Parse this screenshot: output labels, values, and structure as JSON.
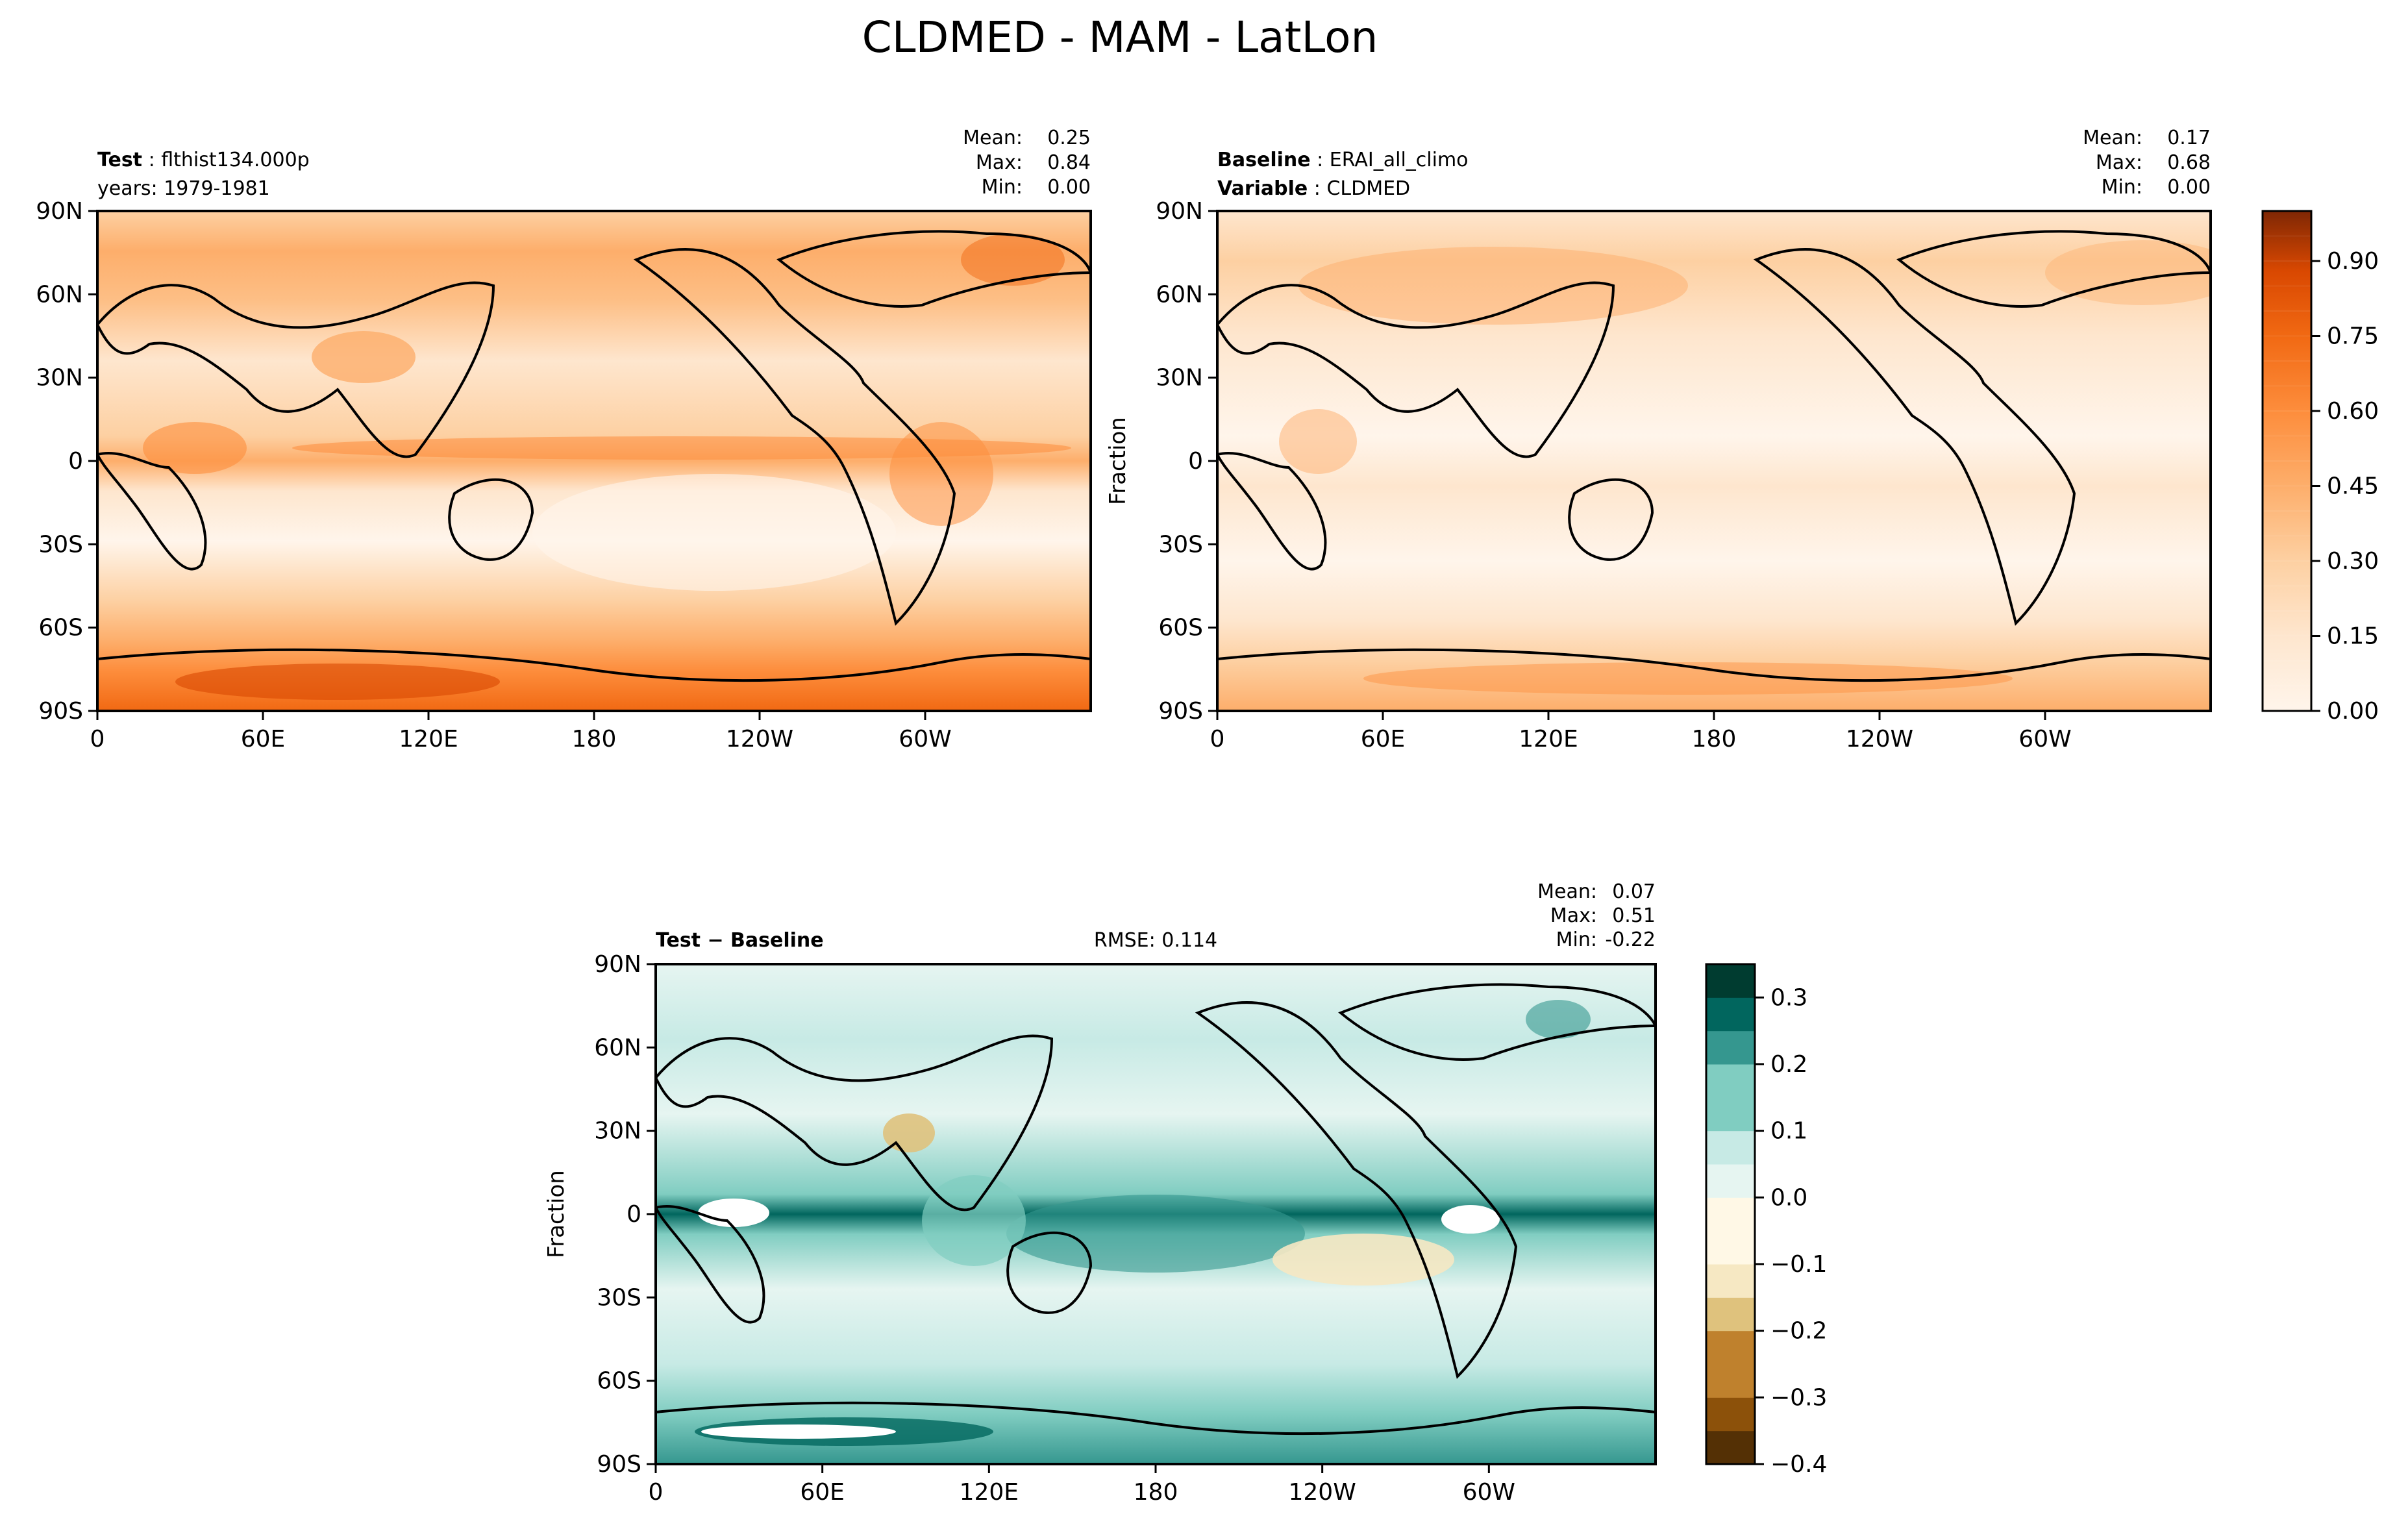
{
  "figure_title": "CLDMED - MAM - LatLon",
  "chart_data": [
    {
      "type": "heatmap",
      "panel": "test",
      "label_bold": "Test",
      "label_value": "flthist134.000p",
      "subtitle": "years: 1979-1981",
      "stats": {
        "mean": "0.25",
        "max": "0.84",
        "min": "0.00"
      },
      "stat_labels": {
        "mean": "Mean:",
        "max": "Max:",
        "min": "Min:"
      },
      "y_ticks": [
        "90N",
        "60N",
        "30N",
        "0",
        "30S",
        "60S",
        "90S"
      ],
      "x_ticks": [
        "0",
        "60E",
        "120E",
        "180",
        "120W",
        "60W"
      ],
      "x_range": [
        0,
        360
      ],
      "y_range": [
        -90,
        90
      ],
      "colormap": "Oranges"
    },
    {
      "type": "heatmap",
      "panel": "baseline",
      "label_bold": "Baseline",
      "label_value": "ERAI_all_climo",
      "label2_bold": "Variable",
      "label2_value": "CLDMED",
      "stats": {
        "mean": "0.17",
        "max": "0.68",
        "min": "0.00"
      },
      "stat_labels": {
        "mean": "Mean:",
        "max": "Max:",
        "min": "Min:"
      },
      "ylabel": "Fraction",
      "y_ticks": [
        "90N",
        "60N",
        "30N",
        "0",
        "30S",
        "60S",
        "90S"
      ],
      "x_ticks": [
        "0",
        "60E",
        "120E",
        "180",
        "120W",
        "60W"
      ],
      "x_range": [
        0,
        360
      ],
      "y_range": [
        -90,
        90
      ],
      "colormap": "Oranges",
      "colorbar": {
        "ticks": [
          "0.90",
          "0.75",
          "0.60",
          "0.45",
          "0.30",
          "0.15",
          "0.00"
        ],
        "tick_values": [
          0.9,
          0.75,
          0.6,
          0.45,
          0.3,
          0.15,
          0.0
        ],
        "range": [
          0.0,
          1.0
        ],
        "levels": 20
      }
    },
    {
      "type": "heatmap",
      "panel": "difference",
      "label_bold": "Test − Baseline",
      "rmse": "RMSE: 0.114",
      "stats": {
        "mean": "0.07",
        "max": "0.51",
        "min": "-0.22"
      },
      "stat_labels": {
        "mean": "Mean:",
        "max": "Max:",
        "min": "Min:"
      },
      "ylabel": "Fraction",
      "y_ticks": [
        "90N",
        "60N",
        "30N",
        "0",
        "30S",
        "60S",
        "90S"
      ],
      "x_ticks": [
        "0",
        "60E",
        "120E",
        "180",
        "120W",
        "60W"
      ],
      "x_range": [
        0,
        360
      ],
      "y_range": [
        -90,
        90
      ],
      "colormap": "BrBG",
      "colorbar": {
        "ticks": [
          "0.3",
          "0.2",
          "0.1",
          "0.0",
          "−0.1",
          "−0.2",
          "−0.3",
          "−0.4"
        ],
        "tick_values": [
          0.3,
          0.2,
          0.1,
          0.0,
          -0.1,
          -0.2,
          -0.3,
          -0.4
        ],
        "range": [
          -0.4,
          0.35
        ],
        "levels": 15
      }
    }
  ],
  "colors": {
    "oranges": [
      "#fff5eb",
      "#fee6ce",
      "#fdd0a2",
      "#fdae6b",
      "#fd8d3c",
      "#f16913",
      "#d94801",
      "#a63603",
      "#7f2704"
    ],
    "brbg_brown": [
      "#fff8e6",
      "#f6e8c3",
      "#dfc27d",
      "#bf812d",
      "#8c510a",
      "#543005"
    ],
    "brbg_green": [
      "#e6f5f1",
      "#c7eae5",
      "#80cdc1",
      "#35978f",
      "#01665e",
      "#003c30"
    ],
    "frame": "#000000"
  }
}
